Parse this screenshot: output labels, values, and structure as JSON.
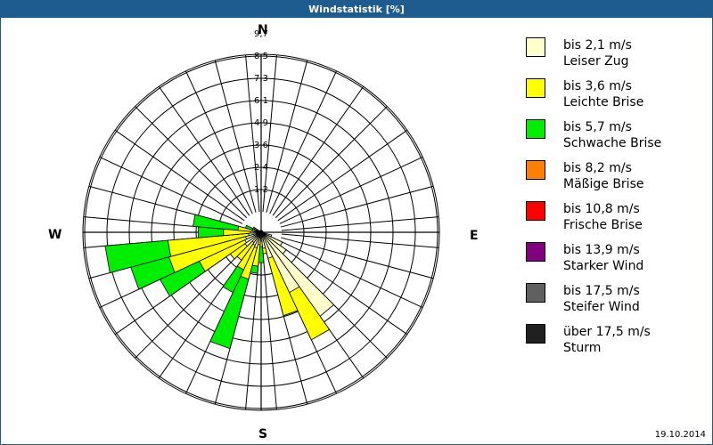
{
  "window": {
    "title": "Windstatistik [%]"
  },
  "compass": {
    "n": "N",
    "e": "E",
    "s": "S",
    "w": "W"
  },
  "footer": {
    "date": "19.10.2014"
  },
  "legend": [
    {
      "range": "bis 2,1 m/s",
      "name": "Leiser Zug",
      "color": "#ffffcc"
    },
    {
      "range": "bis 3,6 m/s",
      "name": "Leichte Brise",
      "color": "#ffff00"
    },
    {
      "range": "bis 5,7 m/s",
      "name": "Schwache Brise",
      "color": "#00ee00"
    },
    {
      "range": "bis 8,2 m/s",
      "name": "Mäßige Brise",
      "color": "#ff8000"
    },
    {
      "range": "bis 10,8 m/s",
      "name": "Frische Brise",
      "color": "#ff0000"
    },
    {
      "range": "bis 13,9 m/s",
      "name": "Starker Wind",
      "color": "#800080"
    },
    {
      "range": "bis 17,5 m/s",
      "name": "Steifer Wind",
      "color": "#606060"
    },
    {
      "range": "über 17,5 m/s",
      "name": "Sturm",
      "color": "#202020"
    }
  ],
  "chart_data": {
    "type": "windrose",
    "title": "Windstatistik [%]",
    "ring_labels": [
      "1,2",
      "2,4",
      "3,6",
      "4,9",
      "6,1",
      "7,3",
      "8,5",
      "9,7"
    ],
    "ring_values": [
      1.2,
      2.4,
      3.6,
      4.9,
      6.1,
      7.3,
      8.5,
      9.7
    ],
    "sector_width_deg": 10,
    "speed_classes": [
      "bis 2,1 m/s",
      "bis 3,6 m/s",
      "bis 5,7 m/s",
      "bis 8,2 m/s",
      "bis 10,8 m/s",
      "bis 13,9 m/s",
      "bis 17,5 m/s",
      "über 17,5 m/s"
    ],
    "sectors": [
      {
        "dir": 110,
        "cumulative": [
          0.3,
          0.3,
          0.3
        ]
      },
      {
        "dir": 120,
        "cumulative": [
          1.0,
          1.0,
          1.0
        ]
      },
      {
        "dir": 130,
        "cumulative": [
          1.4,
          1.4,
          1.4
        ]
      },
      {
        "dir": 140,
        "cumulative": [
          5.4,
          5.4,
          5.4
        ]
      },
      {
        "dir": 150,
        "cumulative": [
          3.4,
          6.3,
          6.3
        ]
      },
      {
        "dir": 160,
        "cumulative": [
          1.2,
          4.5,
          4.5
        ]
      },
      {
        "dir": 170,
        "cumulative": [
          0.6,
          0.9,
          0.9
        ]
      },
      {
        "dir": 180,
        "cumulative": [
          0.2,
          0.5,
          1.4
        ]
      },
      {
        "dir": 190,
        "cumulative": [
          0.4,
          1.6,
          2.0
        ]
      },
      {
        "dir": 200,
        "cumulative": [
          0.6,
          2.4,
          6.4
        ]
      },
      {
        "dir": 210,
        "cumulative": [
          0.5,
          2.0,
          3.4
        ]
      },
      {
        "dir": 220,
        "cumulative": [
          0.4,
          1.6,
          1.6
        ]
      },
      {
        "dir": 230,
        "cumulative": [
          0.8,
          1.8,
          1.8
        ]
      },
      {
        "dir": 240,
        "cumulative": [
          0.7,
          3.5,
          5.9
        ]
      },
      {
        "dir": 250,
        "cumulative": [
          0.6,
          5.0,
          7.2
        ]
      },
      {
        "dir": 260,
        "cumulative": [
          0.4,
          4.9,
          8.4
        ]
      },
      {
        "dir": 270,
        "cumulative": [
          0.3,
          1.8,
          3.2
        ]
      },
      {
        "dir": 280,
        "cumulative": [
          0.2,
          1.0,
          3.5
        ]
      },
      {
        "dir": 290,
        "cumulative": [
          0.1,
          0.2,
          0.6
        ]
      },
      {
        "dir": 300,
        "cumulative": [
          0.1,
          0.1,
          0.2
        ]
      }
    ]
  }
}
